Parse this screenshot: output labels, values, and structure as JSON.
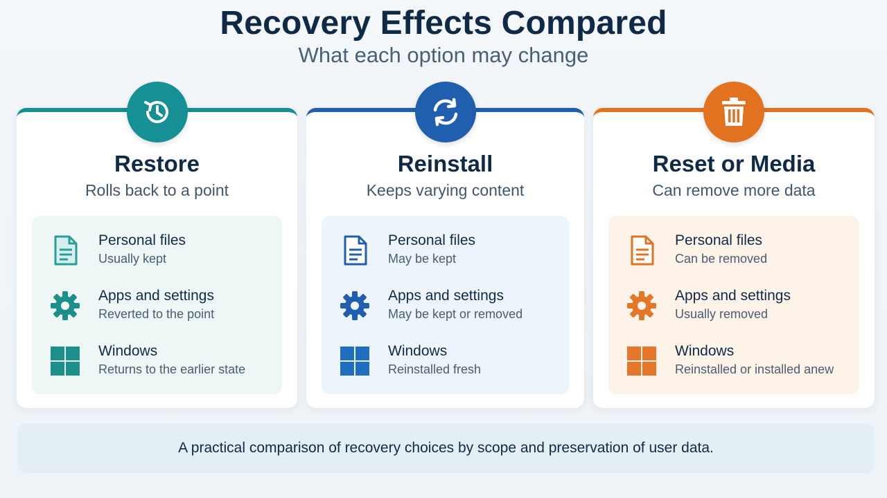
{
  "header": {
    "title": "Recovery Effects Compared",
    "subtitle": "What each option may change"
  },
  "cards": [
    {
      "name": "Restore",
      "subtitle": "Rolls back to a point",
      "accent": "#168f95",
      "icon": "history-icon",
      "rows": [
        {
          "label": "Personal files",
          "value": "Usually kept",
          "icon": "document-icon"
        },
        {
          "label": "Apps and settings",
          "value": "Reverted to the point",
          "icon": "gear-icon"
        },
        {
          "label": "Windows",
          "value": "Returns to the earlier state",
          "icon": "windows-icon"
        }
      ]
    },
    {
      "name": "Reinstall",
      "subtitle": "Keeps varying content",
      "accent": "#1f5fae",
      "icon": "refresh-icon",
      "rows": [
        {
          "label": "Personal files",
          "value": "May be kept",
          "icon": "document-icon"
        },
        {
          "label": "Apps and settings",
          "value": "May be kept or removed",
          "icon": "gear-icon"
        },
        {
          "label": "Windows",
          "value": "Reinstalled fresh",
          "icon": "windows-icon"
        }
      ]
    },
    {
      "name": "Reset or Media",
      "subtitle": "Can remove more data",
      "accent": "#e07220",
      "icon": "trash-icon",
      "rows": [
        {
          "label": "Personal files",
          "value": "Can be removed",
          "icon": "document-icon"
        },
        {
          "label": "Apps and settings",
          "value": "Usually removed",
          "icon": "gear-icon"
        },
        {
          "label": "Windows",
          "value": "Reinstalled or installed anew",
          "icon": "windows-icon"
        }
      ]
    }
  ],
  "footer": {
    "text": "A practical comparison of recovery choices by scope and preservation of user data."
  }
}
